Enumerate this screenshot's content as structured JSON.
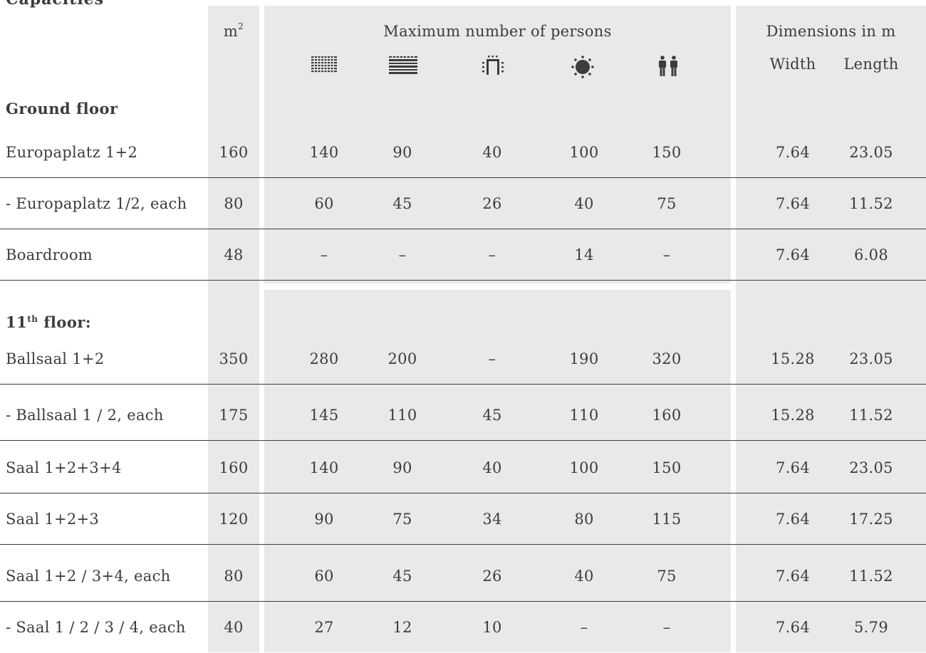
{
  "title": "Capacities",
  "header": {
    "area_label": "m",
    "area_sup": "2",
    "max_persons_label": "Maximum number of persons",
    "dimensions_label": "Dimensions in m",
    "width_label": "Width",
    "length_label": "Length",
    "icons": [
      "theatre-seating-icon",
      "classroom-seating-icon",
      "u-shape-seating-icon",
      "banquet-round-table-icon",
      "reception-standing-icon"
    ]
  },
  "sections": {
    "ground": {
      "label": "Ground floor"
    },
    "eleventh": {
      "num": "11",
      "sup": "th",
      "rest": " floor:"
    }
  },
  "rows": [
    {
      "name": "Europaplatz 1+2",
      "m2": "160",
      "c1": "140",
      "c2": "90",
      "c3": "40",
      "c4": "100",
      "c5": "150",
      "width": "7.64",
      "length": "23.05"
    },
    {
      "name": "- Europaplatz 1/2, each",
      "m2": "80",
      "c1": "60",
      "c2": "45",
      "c3": "26",
      "c4": "40",
      "c5": "75",
      "width": "7.64",
      "length": "11.52"
    },
    {
      "name": "Boardroom",
      "m2": "48",
      "c1": "–",
      "c2": "–",
      "c3": "–",
      "c4": "14",
      "c5": "–",
      "width": "7.64",
      "length": "6.08"
    },
    {
      "name": "Ballsaal 1+2",
      "m2": "350",
      "c1": "280",
      "c2": "200",
      "c3": "–",
      "c4": "190",
      "c5": "320",
      "width": "15.28",
      "length": "23.05"
    },
    {
      "name": "- Ballsaal 1 / 2, each",
      "m2": "175",
      "c1": "145",
      "c2": "110",
      "c3": "45",
      "c4": "110",
      "c5": "160",
      "width": "15.28",
      "length": "11.52"
    },
    {
      "name": "Saal 1+2+3+4",
      "m2": "160",
      "c1": "140",
      "c2": "90",
      "c3": "40",
      "c4": "100",
      "c5": "150",
      "width": "7.64",
      "length": "23.05"
    },
    {
      "name": "Saal 1+2+3",
      "m2": "120",
      "c1": "90",
      "c2": "75",
      "c3": "34",
      "c4": "80",
      "c5": "115",
      "width": "7.64",
      "length": "17.25"
    },
    {
      "name": "Saal 1+2 / 3+4, each",
      "m2": "80",
      "c1": "60",
      "c2": "45",
      "c3": "26",
      "c4": "40",
      "c5": "75",
      "width": "7.64",
      "length": "11.52"
    },
    {
      "name": "- Saal 1 / 2 / 3 / 4, each",
      "m2": "40",
      "c1": "27",
      "c2": "12",
      "c3": "10",
      "c4": "–",
      "c5": "–",
      "width": "7.64",
      "length": "5.79"
    }
  ]
}
